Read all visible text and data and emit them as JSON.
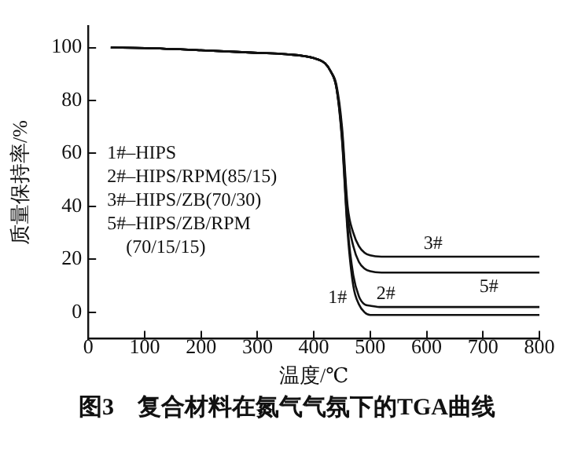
{
  "chart_data": {
    "type": "line",
    "title": "图3　复合材料在氮气气氛下的TGA曲线",
    "xlabel": "温度/℃",
    "ylabel": "质量保持率/%",
    "x": [
      40,
      100,
      200,
      300,
      350,
      400,
      420,
      430,
      440,
      450,
      460,
      470,
      480,
      490,
      500,
      520,
      600,
      800
    ],
    "series": [
      {
        "name": "1#",
        "color": "#111111",
        "values": [
          100,
          99.8,
          99,
          98,
          97.5,
          96,
          94,
          91,
          85,
          65,
          30,
          10,
          3,
          0,
          -1,
          -1,
          -1,
          -1
        ]
      },
      {
        "name": "2#",
        "color": "#111111",
        "values": [
          100,
          99.8,
          99,
          98,
          97.5,
          96,
          94,
          91,
          85,
          66,
          32,
          14,
          6,
          3,
          2.5,
          2,
          2,
          2
        ]
      },
      {
        "name": "3#",
        "color": "#111111",
        "values": [
          100,
          99.8,
          99,
          98,
          97.5,
          96,
          94,
          91,
          86,
          70,
          40,
          30,
          25,
          22.5,
          21.5,
          21,
          21,
          21
        ]
      },
      {
        "name": "5#",
        "color": "#111111",
        "values": [
          100,
          99.8,
          99,
          98,
          97.5,
          96,
          94,
          91,
          85,
          68,
          37,
          25,
          19,
          16.5,
          15.5,
          15,
          15,
          15
        ]
      }
    ],
    "xlim": [
      0,
      800
    ],
    "xticks": [
      0,
      100,
      200,
      300,
      400,
      500,
      600,
      700,
      800
    ],
    "ylim": [
      -10,
      108
    ],
    "yticks": [
      0,
      20,
      40,
      60,
      80,
      100
    ],
    "grid": false,
    "legend": false,
    "marker": "none",
    "line_style": "solid",
    "annotations": [
      "1#–HIPS",
      "2#–HIPS/RPM(85/15)",
      "3#–HIPS/ZB(70/30)",
      "5#–HIPS/ZB/RPM",
      "(70/15/15)"
    ]
  }
}
